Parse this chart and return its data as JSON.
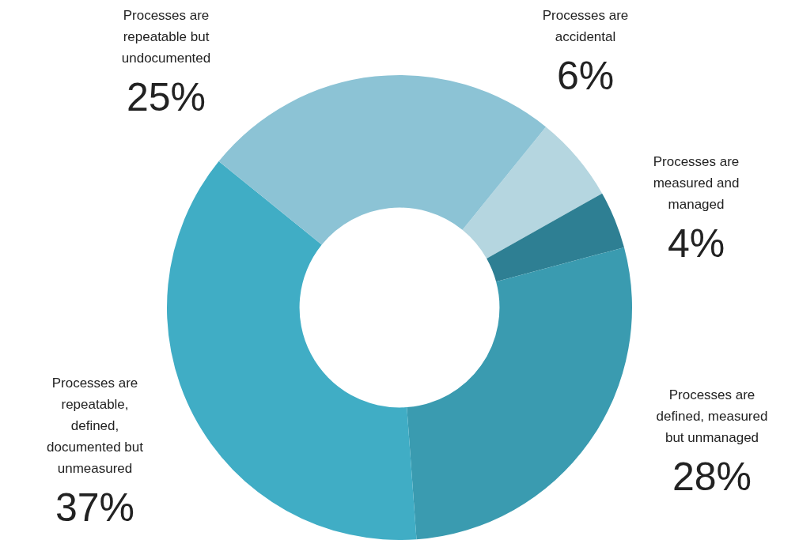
{
  "chart_data": {
    "type": "donut",
    "categories": [
      "Processes are accidental",
      "Processes are measured and managed",
      "Processes are defined, measured but unmanaged",
      "Processes are repeatable, defined, documented but unmeasured",
      "Processes are repeatable but undocumented"
    ],
    "values": [
      6,
      4,
      28,
      37,
      25
    ],
    "value_labels": [
      "6%",
      "4%",
      "28%",
      "37%",
      "25%"
    ],
    "colors": [
      "#b5d6e0",
      "#2e7f93",
      "#3a9bb0",
      "#40adc5",
      "#8cc3d5"
    ],
    "legend": false
  }
}
